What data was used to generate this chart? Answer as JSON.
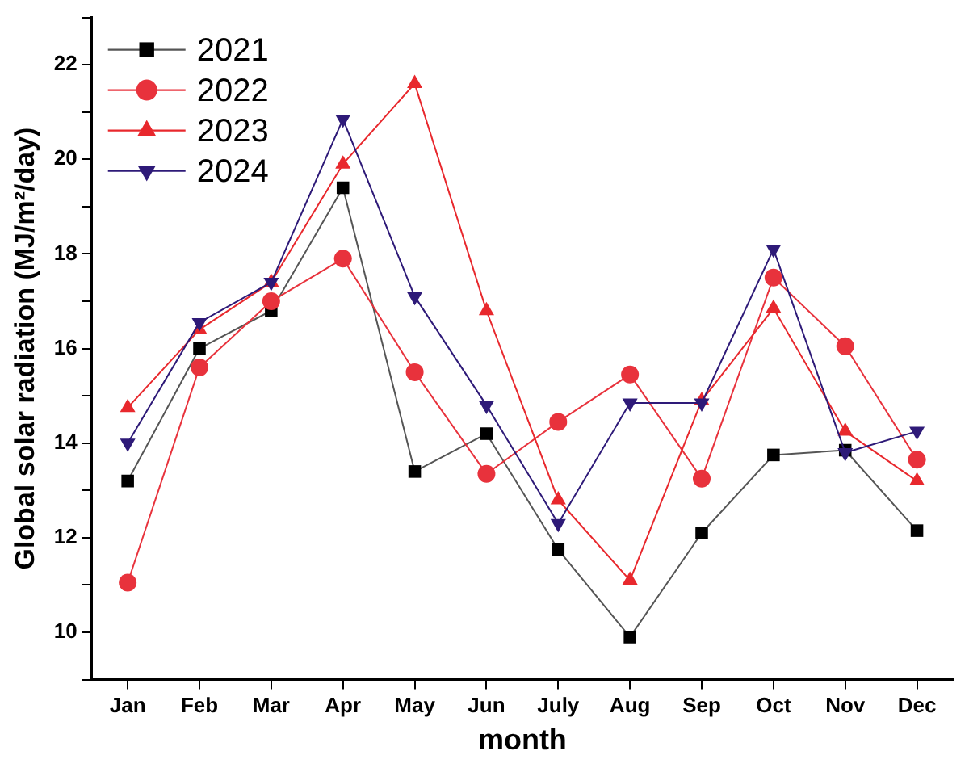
{
  "chart_data": {
    "type": "line",
    "xlabel": "month",
    "ylabel": "Global solar radiation (MJ/m²/day)",
    "categories": [
      "Jan",
      "Feb",
      "Mar",
      "Apr",
      "May",
      "Jun",
      "July",
      "Aug",
      "Sep",
      "Oct",
      "Nov",
      "Dec"
    ],
    "series": [
      {
        "name": "2021",
        "color": "#000000",
        "marker": "square",
        "values": [
          13.2,
          16.0,
          16.8,
          19.4,
          13.4,
          14.2,
          11.75,
          9.9,
          12.1,
          13.75,
          13.85,
          12.15
        ]
      },
      {
        "name": "2022",
        "color": "#e8323c",
        "marker": "circle",
        "values": [
          11.05,
          15.6,
          17.0,
          17.9,
          15.5,
          13.35,
          14.45,
          15.45,
          13.25,
          17.5,
          16.05,
          13.65
        ]
      },
      {
        "name": "2023",
        "color": "#e8282d",
        "marker": "triangle",
        "values": [
          14.75,
          16.4,
          17.4,
          19.9,
          21.6,
          16.8,
          12.8,
          11.1,
          14.9,
          16.85,
          14.25,
          13.2
        ]
      },
      {
        "name": "2024",
        "color": "#2e1a78",
        "marker": "triangle-down",
        "values": [
          14.0,
          16.55,
          17.4,
          20.85,
          17.1,
          14.8,
          12.3,
          14.85,
          14.85,
          18.1,
          13.8,
          14.25
        ]
      }
    ],
    "ylim": [
      9,
      23
    ],
    "yticks": [
      {
        "value": 9,
        "label": null
      },
      10,
      {
        "value": 11,
        "label": null
      },
      12,
      {
        "value": 13,
        "label": null
      },
      14,
      {
        "value": 15,
        "label": null
      },
      16,
      {
        "value": 17,
        "label": null
      },
      18,
      {
        "value": 19,
        "label": null
      },
      20,
      {
        "value": 21,
        "label": null
      },
      22,
      {
        "value": 23,
        "label": null
      }
    ],
    "grid": false,
    "legend": "top left",
    "line_style": "solid"
  }
}
